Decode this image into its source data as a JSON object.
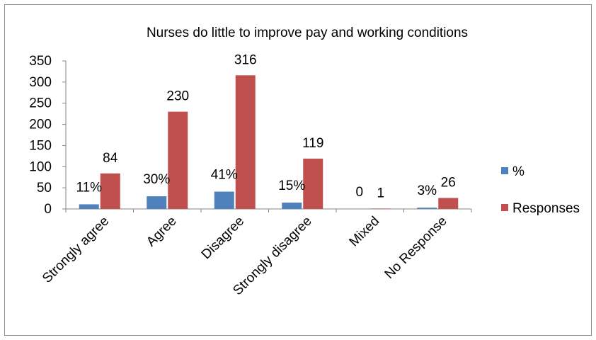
{
  "chart_data": {
    "type": "bar",
    "title": "Nurses do little to improve pay and working conditions",
    "xlabel": "",
    "ylabel": "",
    "categories": [
      "Strongly agree",
      "Agree",
      "Disagree",
      "Strongly disagree",
      "Mixed",
      "No Response"
    ],
    "ylim": [
      0,
      350
    ],
    "yticks": [
      0,
      50,
      100,
      150,
      200,
      250,
      300,
      350
    ],
    "grid": false,
    "legend_position": "right",
    "series": [
      {
        "name": "%",
        "values": [
          11,
          30,
          41,
          15,
          0,
          3
        ],
        "labels": [
          "11%",
          "30%",
          "41%",
          "15%",
          "0",
          "3%"
        ],
        "color": "#4f81bd"
      },
      {
        "name": "Responses",
        "values": [
          84,
          230,
          316,
          119,
          1,
          26
        ],
        "labels": [
          "84",
          "230",
          "316",
          "119",
          "1",
          "26"
        ],
        "color": "#c0504d"
      }
    ]
  }
}
